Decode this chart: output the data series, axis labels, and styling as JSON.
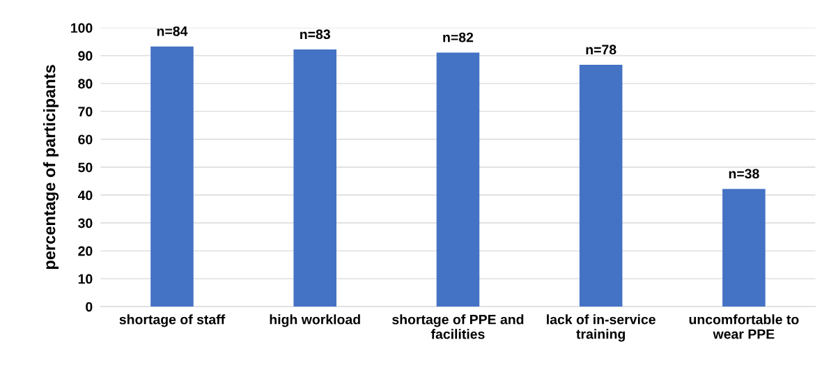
{
  "chart_data": {
    "type": "bar",
    "ylabel": "percentage of participants",
    "categories": [
      "shortage of staff",
      "high workload",
      "shortage of PPE and\nfacilities",
      "lack of in-service\ntraining",
      "uncomfortable to\nwear PPE"
    ],
    "values": [
      93.3,
      92.2,
      91.1,
      86.7,
      42.2
    ],
    "annotations": [
      {
        "text": "n=84",
        "x": "shortage of staff",
        "y": 93.3
      },
      {
        "text": "n=83",
        "x": "high workload",
        "y": 92.2
      },
      {
        "text": "n=82",
        "x": "shortage of PPE and\nfacilities",
        "y": 91.1
      },
      {
        "text": "n=78",
        "x": "lack of in-service\ntraining",
        "y": 86.7
      },
      {
        "text": "n=38",
        "x": "uncomfortable to\nwear PPE",
        "y": 42.2
      }
    ],
    "color": "#4472c4",
    "ylim": [
      0,
      100
    ],
    "yticks": [
      0,
      10,
      20,
      30,
      40,
      50,
      60,
      70,
      80,
      90,
      100
    ],
    "grid": "y",
    "legend": false
  }
}
